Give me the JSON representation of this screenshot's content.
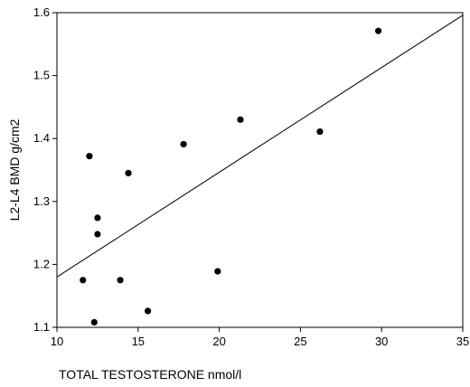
{
  "chart_data": {
    "type": "scatter",
    "xlabel": "TOTAL TESTOSTERONE nmol/l",
    "ylabel": "L2-L4 BMD g/cm2",
    "xlim": [
      10,
      35
    ],
    "ylim": [
      1.1,
      1.6
    ],
    "xticks": [
      10,
      15,
      20,
      25,
      30,
      35
    ],
    "yticks": [
      1.1,
      1.2,
      1.3,
      1.4,
      1.5,
      1.6
    ],
    "ytick_labels": [
      "1.1",
      "1.2",
      "1.3",
      "1.4",
      "1.5",
      "1.6"
    ],
    "points": [
      {
        "x": 11.6,
        "y": 1.175
      },
      {
        "x": 12.0,
        "y": 1.372
      },
      {
        "x": 12.3,
        "y": 1.108
      },
      {
        "x": 12.5,
        "y": 1.274
      },
      {
        "x": 12.5,
        "y": 1.248
      },
      {
        "x": 13.9,
        "y": 1.175
      },
      {
        "x": 14.4,
        "y": 1.345
      },
      {
        "x": 15.6,
        "y": 1.126
      },
      {
        "x": 17.8,
        "y": 1.391
      },
      {
        "x": 19.9,
        "y": 1.189
      },
      {
        "x": 21.3,
        "y": 1.43
      },
      {
        "x": 26.2,
        "y": 1.411
      },
      {
        "x": 29.8,
        "y": 1.571
      }
    ],
    "regression_line": {
      "x": [
        10,
        35
      ],
      "y": [
        1.18,
        1.596
      ]
    },
    "grid": false,
    "legend": false
  }
}
